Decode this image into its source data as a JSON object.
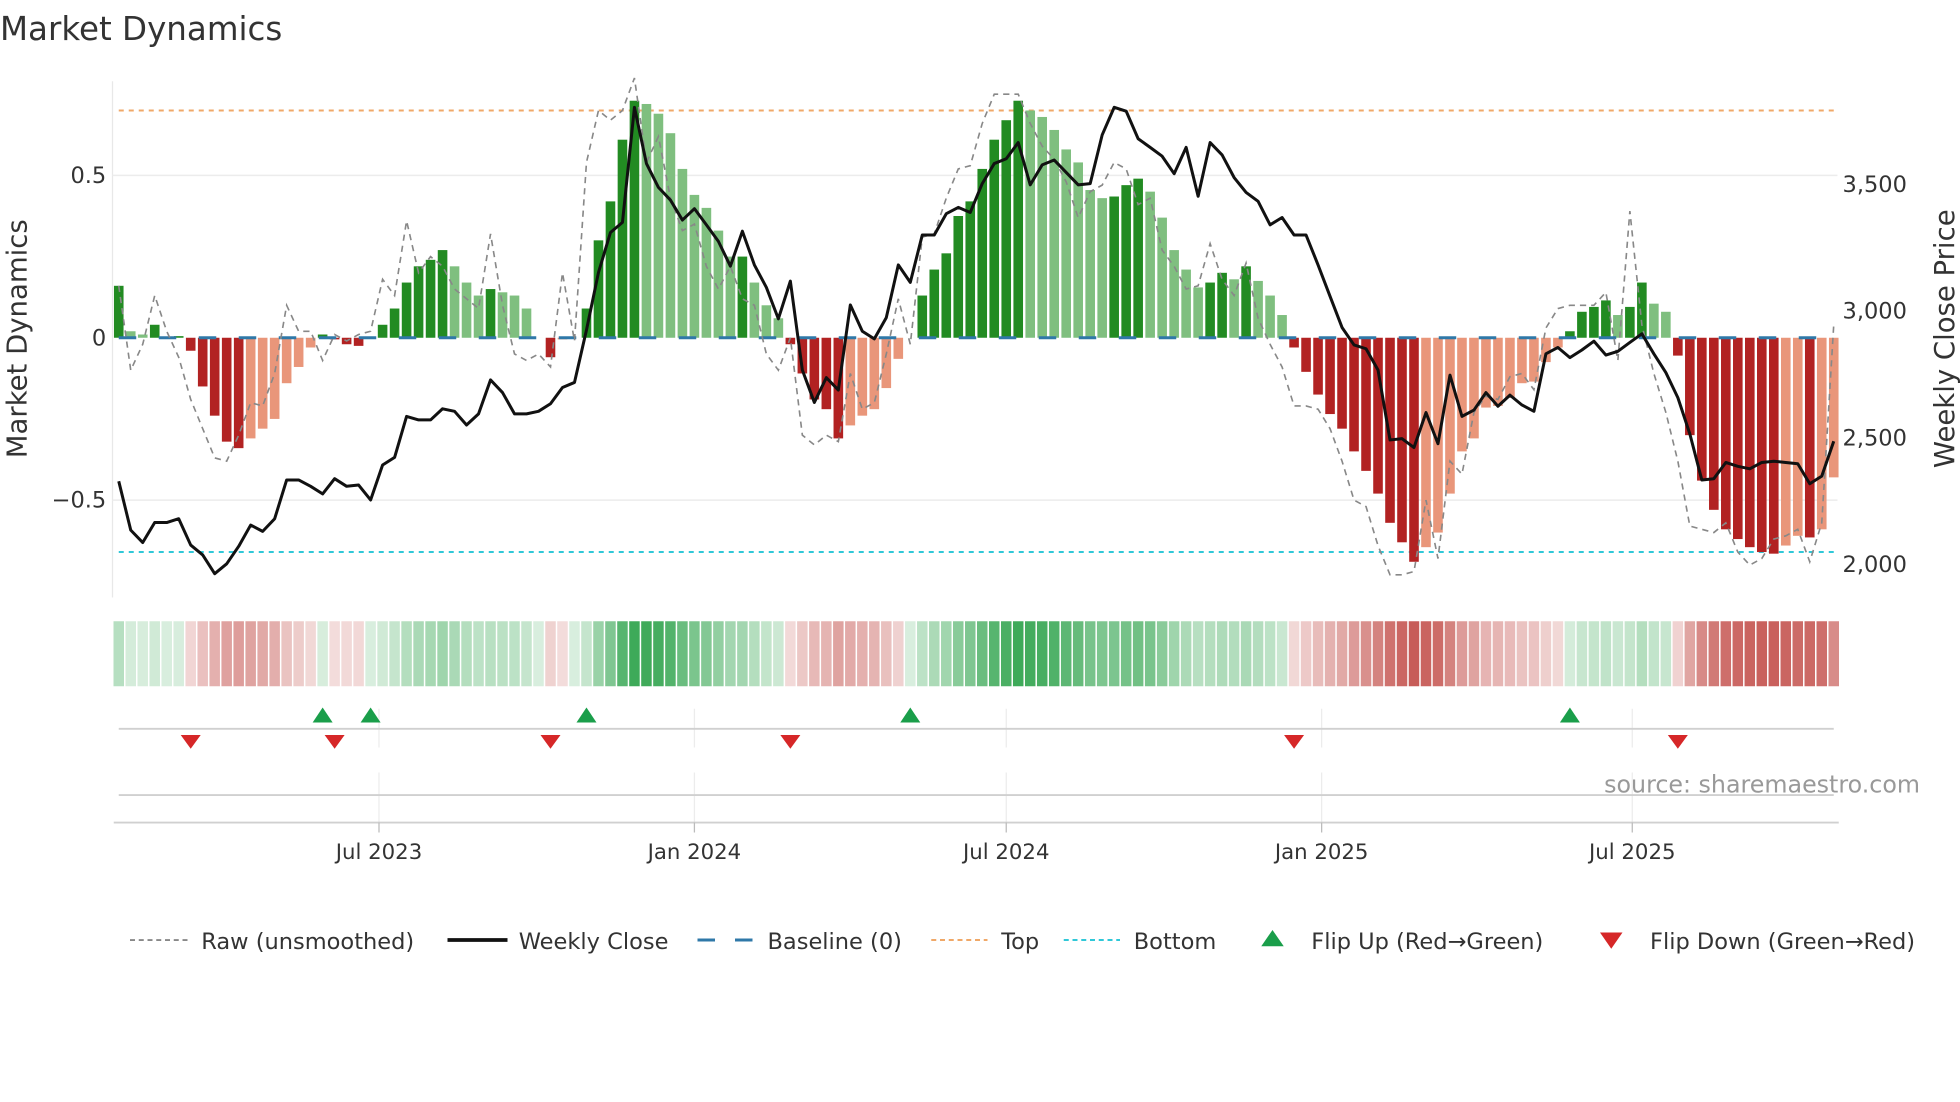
{
  "title": "Market Dynamics",
  "source": "source: sharemaestro.com",
  "chart_data": {
    "type": "bar",
    "title": "Market Dynamics",
    "ylabel": "Market Dynamics",
    "y2label": "Weekly Close Price",
    "ylim": [
      -0.8,
      0.79
    ],
    "y2lim": [
      1865,
      3903
    ],
    "grid": true,
    "legend_position": "bottom",
    "yticks": [
      {
        "value": 0.5,
        "label": "0.5"
      },
      {
        "value": 0,
        "label": "0"
      },
      {
        "value": -0.5,
        "label": "−0.5"
      }
    ],
    "y2ticks": [
      {
        "value": 3500,
        "label": "3,500"
      },
      {
        "value": 3000,
        "label": "3,000"
      },
      {
        "value": 2500,
        "label": "2,500"
      },
      {
        "value": 2000,
        "label": "2,000"
      }
    ],
    "xticks": [
      {
        "week": 21.7,
        "label": "Jul 2023"
      },
      {
        "week": 48.0,
        "label": "Jan 2024"
      },
      {
        "week": 74.0,
        "label": "Jul 2024"
      },
      {
        "week": 100.3,
        "label": "Jan 2025"
      },
      {
        "week": 126.2,
        "label": "Jul 2025"
      }
    ],
    "top_level": 0.7,
    "bottom_level": -0.66,
    "baseline": 0,
    "momentum": [
      0.16,
      0.02,
      0.01,
      0.04,
      0.0,
      0.005,
      -0.04,
      -0.15,
      -0.24,
      -0.32,
      -0.34,
      -0.31,
      -0.28,
      -0.25,
      -0.14,
      -0.09,
      -0.03,
      0.01,
      -0.005,
      -0.02,
      -0.025,
      0.0,
      0.04,
      0.09,
      0.17,
      0.22,
      0.24,
      0.27,
      0.22,
      0.17,
      0.13,
      0.15,
      0.14,
      0.13,
      0.09,
      0.0,
      -0.06,
      -0.005,
      0.0,
      0.09,
      0.3,
      0.42,
      0.61,
      0.73,
      0.72,
      0.69,
      0.63,
      0.52,
      0.44,
      0.4,
      0.33,
      0.25,
      0.25,
      0.17,
      0.1,
      0.06,
      -0.02,
      -0.11,
      -0.19,
      -0.22,
      -0.31,
      -0.27,
      -0.24,
      -0.22,
      -0.155,
      -0.065,
      0.0,
      0.13,
      0.21,
      0.26,
      0.375,
      0.42,
      0.52,
      0.61,
      0.67,
      0.73,
      0.7,
      0.68,
      0.64,
      0.58,
      0.54,
      0.455,
      0.43,
      0.435,
      0.47,
      0.49,
      0.45,
      0.37,
      0.27,
      0.21,
      0.155,
      0.17,
      0.2,
      0.18,
      0.22,
      0.175,
      0.13,
      0.07,
      -0.03,
      -0.105,
      -0.175,
      -0.235,
      -0.28,
      -0.35,
      -0.41,
      -0.48,
      -0.57,
      -0.63,
      -0.69,
      -0.645,
      -0.6,
      -0.48,
      -0.35,
      -0.31,
      -0.215,
      -0.21,
      -0.185,
      -0.14,
      -0.135,
      -0.075,
      -0.03,
      0.02,
      0.08,
      0.095,
      0.115,
      0.07,
      0.095,
      0.17,
      0.105,
      0.08,
      -0.055,
      -0.3,
      -0.44,
      -0.53,
      -0.59,
      -0.62,
      -0.645,
      -0.66,
      -0.665,
      -0.64,
      -0.61,
      -0.615,
      -0.59,
      -0.43
    ],
    "raw": [
      0.16,
      -0.1,
      -0.02,
      0.13,
      0.02,
      -0.06,
      -0.19,
      -0.28,
      -0.37,
      -0.38,
      -0.3,
      -0.2,
      -0.21,
      -0.11,
      0.1,
      0.02,
      0.02,
      -0.07,
      0.01,
      -0.01,
      0.01,
      0.02,
      0.18,
      0.13,
      0.36,
      0.2,
      0.25,
      0.22,
      0.15,
      0.12,
      0.09,
      0.32,
      0.1,
      -0.05,
      -0.07,
      -0.05,
      -0.09,
      0.2,
      -0.01,
      0.54,
      0.7,
      0.67,
      0.7,
      0.8,
      0.54,
      0.62,
      0.43,
      0.33,
      0.35,
      0.22,
      0.15,
      0.22,
      0.12,
      0.1,
      -0.05,
      -0.1,
      0.0,
      -0.3,
      -0.33,
      -0.3,
      -0.32,
      -0.11,
      -0.22,
      -0.2,
      -0.05,
      0.12,
      -0.02,
      0.31,
      0.32,
      0.43,
      0.52,
      0.53,
      0.66,
      0.75,
      0.75,
      0.75,
      0.66,
      0.59,
      0.55,
      0.48,
      0.37,
      0.45,
      0.47,
      0.54,
      0.52,
      0.41,
      0.43,
      0.27,
      0.22,
      0.15,
      0.16,
      0.29,
      0.18,
      0.13,
      0.23,
      0.06,
      -0.02,
      -0.09,
      -0.21,
      -0.21,
      -0.22,
      -0.28,
      -0.38,
      -0.5,
      -0.52,
      -0.64,
      -0.73,
      -0.73,
      -0.72,
      -0.5,
      -0.68,
      -0.38,
      -0.42,
      -0.23,
      -0.18,
      -0.19,
      -0.12,
      -0.11,
      -0.16,
      0.03,
      0.09,
      0.1,
      0.1,
      0.1,
      0.14,
      -0.07,
      0.39,
      0.04,
      -0.11,
      -0.23,
      -0.38,
      -0.58,
      -0.59,
      -0.6,
      -0.57,
      -0.66,
      -0.7,
      -0.68,
      -0.62,
      -0.61,
      -0.59,
      -0.69,
      -0.57,
      0.04
    ],
    "weekly_close": [
      2324,
      2131,
      2082,
      2161,
      2161,
      2176,
      2072,
      2033,
      1959,
      1998,
      2067,
      2151,
      2126,
      2176,
      2329,
      2329,
      2304,
      2274,
      2334,
      2304,
      2309,
      2250,
      2388,
      2418,
      2580,
      2566,
      2566,
      2610,
      2600,
      2546,
      2590,
      2724,
      2674,
      2590,
      2590,
      2600,
      2630,
      2694,
      2714,
      2921,
      3148,
      3306,
      3346,
      3800,
      3578,
      3484,
      3434,
      3355,
      3400,
      3336,
      3271,
      3173,
      3311,
      3178,
      3089,
      2965,
      3114,
      2763,
      2635,
      2733,
      2684,
      3020,
      2916,
      2886,
      2970,
      3178,
      3109,
      3296,
      3296,
      3380,
      3405,
      3385,
      3499,
      3578,
      3597,
      3661,
      3494,
      3573,
      3592,
      3543,
      3494,
      3499,
      3691,
      3800,
      3785,
      3676,
      3642,
      3607,
      3538,
      3642,
      3449,
      3661,
      3612,
      3523,
      3464,
      3429,
      3336,
      3365,
      3296,
      3296,
      3178,
      3054,
      2931,
      2862,
      2847,
      2763,
      2487,
      2492,
      2457,
      2595,
      2472,
      2743,
      2580,
      2605,
      2674,
      2620,
      2664,
      2625,
      2600,
      2827,
      2852,
      2812,
      2842,
      2877,
      2822,
      2837,
      2872,
      2906,
      2827,
      2753,
      2654,
      2511,
      2329,
      2334,
      2398,
      2383,
      2373,
      2398,
      2403,
      2398,
      2393,
      2314,
      2344,
      2482
    ],
    "flip_up_weeks": [
      17,
      21,
      39,
      66,
      121
    ],
    "flip_down_weeks": [
      6,
      18,
      36,
      56,
      98,
      130
    ],
    "legend": [
      {
        "label": "Raw (unsmoothed)",
        "kind": "raw"
      },
      {
        "label": "Weekly Close",
        "kind": "close"
      },
      {
        "label": "Baseline (0)",
        "kind": "baseline"
      },
      {
        "label": "Top",
        "kind": "top"
      },
      {
        "label": "Bottom",
        "kind": "bottom"
      },
      {
        "label": "Flip Up (Red→Green)",
        "kind": "up"
      },
      {
        "label": "Flip Down (Green→Red)",
        "kind": "down"
      }
    ],
    "colors": {
      "pos_strong": "#228b22",
      "pos_weak": "#7fbf7f",
      "neg_strong": "#b22222",
      "neg_weak": "#e9967a",
      "close": "#111111",
      "raw": "#888888",
      "baseline": "#2f78a8",
      "top": "#f0a868",
      "bottom": "#30c8d8",
      "flip_up": "#1a9e4a",
      "flip_down": "#d62728"
    }
  }
}
